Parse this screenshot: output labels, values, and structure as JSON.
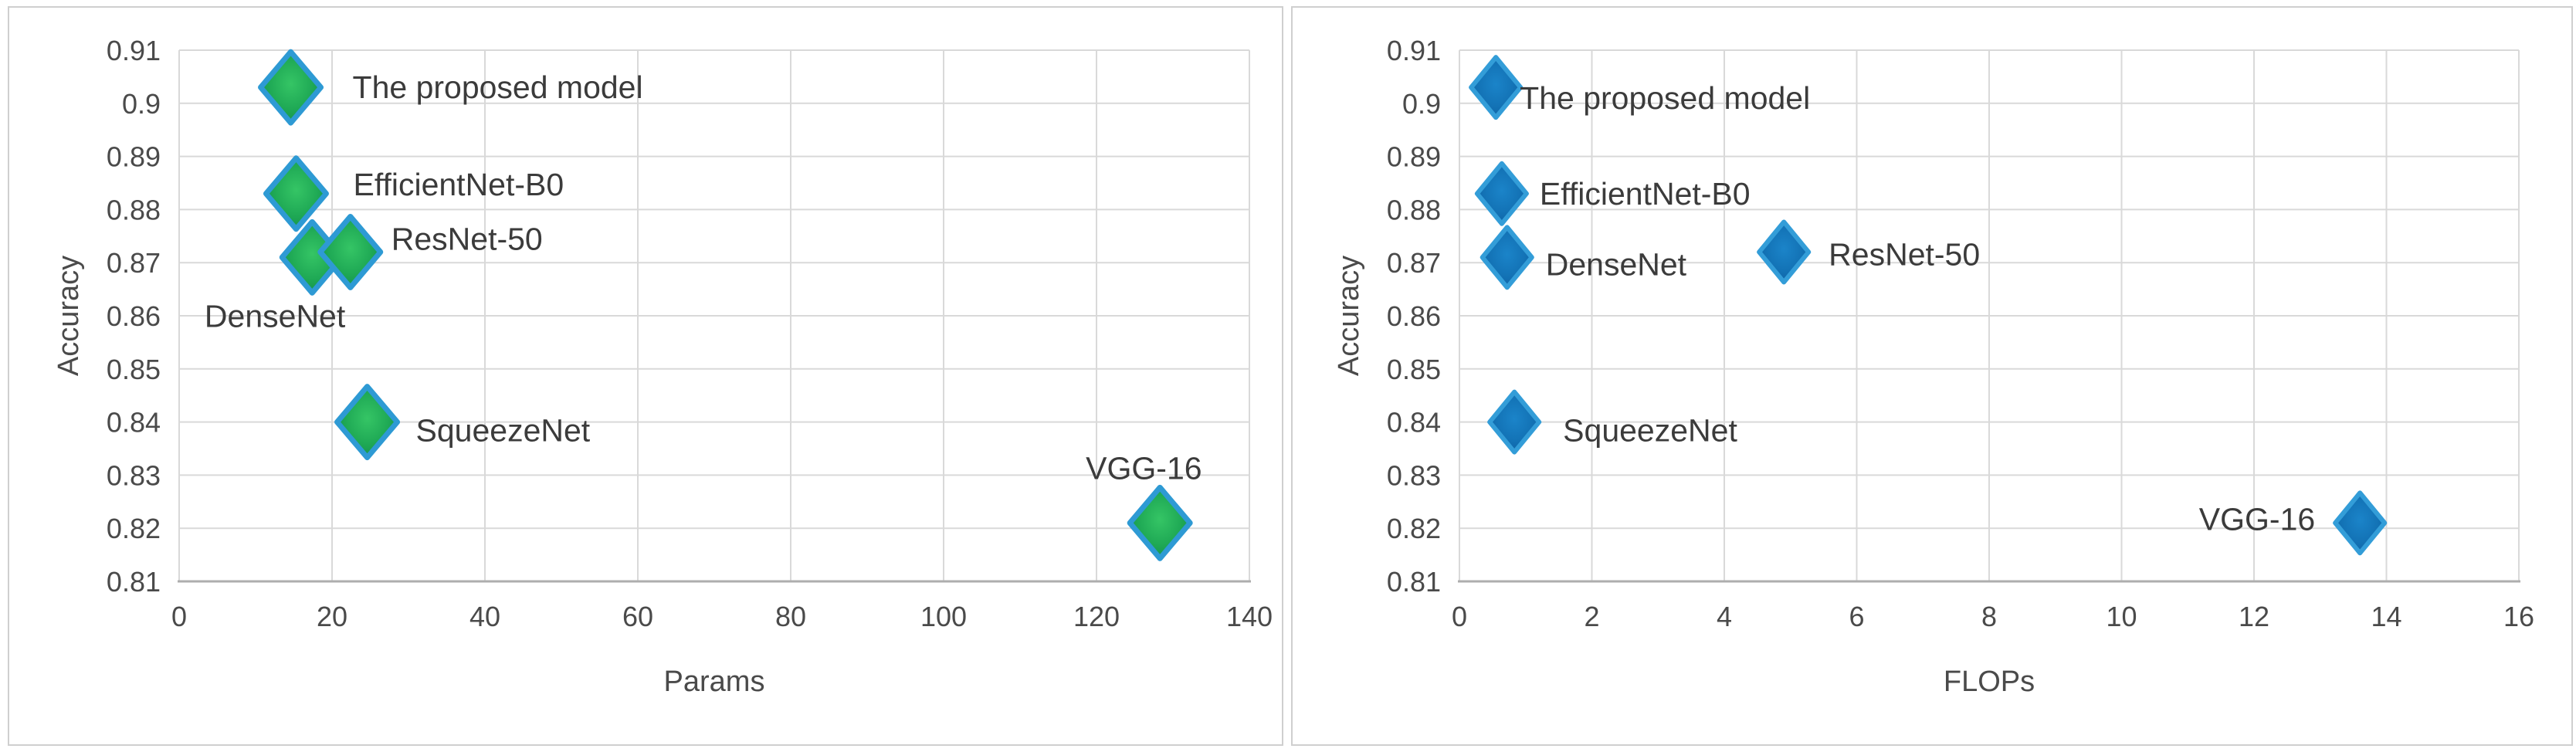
{
  "page": {
    "background": "#ffffff",
    "panel_border": "#cfcfcf",
    "panel_background": "#ffffff"
  },
  "chart_data": [
    {
      "type": "scatter",
      "title": "",
      "xlabel": "Params",
      "ylabel": "Accuracy",
      "xlim": [
        0,
        140
      ],
      "xticks": [
        0,
        20,
        40,
        60,
        80,
        100,
        120,
        140
      ],
      "ylim": [
        0.81,
        0.91
      ],
      "yticks": [
        {
          "v": 0.91,
          "label": "0.91"
        },
        {
          "v": 0.9,
          "label": "0.9"
        },
        {
          "v": 0.89,
          "label": "0.89"
        },
        {
          "v": 0.88,
          "label": "0.88"
        },
        {
          "v": 0.87,
          "label": "0.87"
        },
        {
          "v": 0.86,
          "label": "0.86"
        },
        {
          "v": 0.85,
          "label": "0.85"
        },
        {
          "v": 0.84,
          "label": "0.84"
        },
        {
          "v": 0.83,
          "label": "0.83"
        },
        {
          "v": 0.82,
          "label": "0.82"
        },
        {
          "v": 0.81,
          "label": "0.81"
        }
      ],
      "grid": true,
      "legend": "none",
      "grid_color": "#d9d9d9",
      "axis_color": "#aeaeae",
      "tick_color": "#4a4a4a",
      "label_color": "#3b3b3b",
      "marker_style": {
        "border": "#2e9ad4",
        "fill_center": "#35c565",
        "fill_mid": "#1fa955",
        "fill_edge": "#128a46",
        "width": 78,
        "height": 92,
        "stroke_width": 7
      },
      "series": [
        {
          "name": "models",
          "points": [
            {
              "label": "The proposed model",
              "x": 14.6,
              "y": 0.903,
              "label_anchor": "start",
              "label_dx": 80,
              "label_dy": 0
            },
            {
              "label": "EfficientNet-B0",
              "x": 15.3,
              "y": 0.883,
              "label_anchor": "start",
              "label_dx": 74,
              "label_dy": -12
            },
            {
              "label": "DenseNet",
              "x": 17.4,
              "y": 0.871,
              "label_anchor": "end",
              "label_dx": 43,
              "label_dy": 76
            },
            {
              "label": "ResNet-50",
              "x": 22.4,
              "y": 0.872,
              "label_anchor": "start",
              "label_dx": 53,
              "label_dy": -17
            },
            {
              "label": "SqueezeNet",
              "x": 24.6,
              "y": 0.84,
              "label_anchor": "start",
              "label_dx": 63,
              "label_dy": 11
            },
            {
              "label": "VGG-16",
              "x": 128.3,
              "y": 0.821,
              "label_anchor": "start",
              "label_dx": -96,
              "label_dy": -71
            }
          ]
        }
      ]
    },
    {
      "type": "scatter",
      "title": "",
      "xlabel": "FLOPs",
      "ylabel": "Accuracy",
      "xlim": [
        0,
        16
      ],
      "xticks": [
        0,
        2,
        4,
        6,
        8,
        10,
        12,
        14,
        16
      ],
      "ylim": [
        0.81,
        0.91
      ],
      "yticks": [
        {
          "v": 0.91,
          "label": "0.91"
        },
        {
          "v": 0.9,
          "label": "0.9"
        },
        {
          "v": 0.89,
          "label": "0.89"
        },
        {
          "v": 0.88,
          "label": "0.88"
        },
        {
          "v": 0.87,
          "label": "0.87"
        },
        {
          "v": 0.86,
          "label": "0.86"
        },
        {
          "v": 0.85,
          "label": "0.85"
        },
        {
          "v": 0.84,
          "label": "0.84"
        },
        {
          "v": 0.83,
          "label": "0.83"
        },
        {
          "v": 0.82,
          "label": "0.82"
        },
        {
          "v": 0.81,
          "label": "0.81"
        }
      ],
      "grid": true,
      "legend": "none",
      "grid_color": "#d9d9d9",
      "axis_color": "#aeaeae",
      "tick_color": "#4a4a4a",
      "label_color": "#3b3b3b",
      "marker_style": {
        "border": "#339dd8",
        "fill_center": "#1b84c9",
        "fill_mid": "#1373b6",
        "fill_edge": "#0d5d9f",
        "width": 64,
        "height": 78,
        "stroke_width": 6
      },
      "series": [
        {
          "name": "models",
          "points": [
            {
              "label": "The proposed model",
              "x": 0.55,
              "y": 0.903,
              "label_anchor": "start",
              "label_dx": 31,
              "label_dy": 14
            },
            {
              "label": "EfficientNet-B0",
              "x": 0.64,
              "y": 0.883,
              "label_anchor": "start",
              "label_dx": 49,
              "label_dy": 0
            },
            {
              "label": "DenseNet",
              "x": 0.72,
              "y": 0.871,
              "label_anchor": "start",
              "label_dx": 50,
              "label_dy": 9
            },
            {
              "label": "ResNet-50",
              "x": 4.9,
              "y": 0.872,
              "label_anchor": "start",
              "label_dx": 58,
              "label_dy": 3
            },
            {
              "label": "SqueezeNet",
              "x": 0.83,
              "y": 0.84,
              "label_anchor": "start",
              "label_dx": 63,
              "label_dy": 11
            },
            {
              "label": "VGG-16",
              "x": 13.6,
              "y": 0.821,
              "label_anchor": "end",
              "label_dx": -58,
              "label_dy": -5
            }
          ]
        }
      ]
    }
  ]
}
